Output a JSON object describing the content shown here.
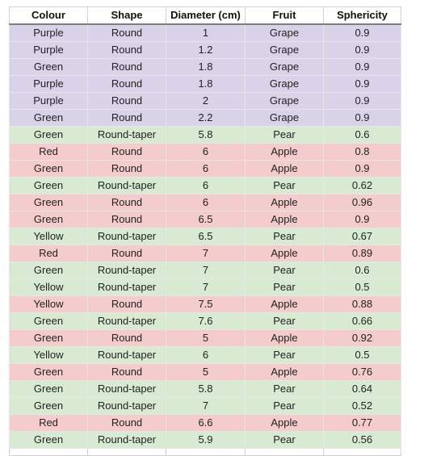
{
  "sheet": {
    "headers": [
      "Colour",
      "Shape",
      "Diameter (cm)",
      "Fruit",
      "Sphericity"
    ],
    "row_colors": {
      "Grape": "#d9d2e9",
      "Pear": "#d9ead3",
      "Apple": "#f4cccc"
    },
    "rows": [
      [
        "Purple",
        "Round",
        "1",
        "Grape",
        "0.9"
      ],
      [
        "Purple",
        "Round",
        "1.2",
        "Grape",
        "0.9"
      ],
      [
        "Green",
        "Round",
        "1.8",
        "Grape",
        "0.9"
      ],
      [
        "Purple",
        "Round",
        "1.8",
        "Grape",
        "0.9"
      ],
      [
        "Purple",
        "Round",
        "2",
        "Grape",
        "0.9"
      ],
      [
        "Green",
        "Round",
        "2.2",
        "Grape",
        "0.9"
      ],
      [
        "Green",
        "Round-taper",
        "5.8",
        "Pear",
        "0.6"
      ],
      [
        "Red",
        "Round",
        "6",
        "Apple",
        "0.8"
      ],
      [
        "Green",
        "Round",
        "6",
        "Apple",
        "0.9"
      ],
      [
        "Green",
        "Round-taper",
        "6",
        "Pear",
        "0.62"
      ],
      [
        "Green",
        "Round",
        "6",
        "Apple",
        "0.96"
      ],
      [
        "Green",
        "Round",
        "6.5",
        "Apple",
        "0.9"
      ],
      [
        "Yellow",
        "Round-taper",
        "6.5",
        "Pear",
        "0.67"
      ],
      [
        "Red",
        "Round",
        "7",
        "Apple",
        "0.89"
      ],
      [
        "Green",
        "Round-taper",
        "7",
        "Pear",
        "0.6"
      ],
      [
        "Yellow",
        "Round-taper",
        "7",
        "Pear",
        "0.5"
      ],
      [
        "Yellow",
        "Round",
        "7.5",
        "Apple",
        "0.88"
      ],
      [
        "Green",
        "Round-taper",
        "7.6",
        "Pear",
        "0.66"
      ],
      [
        "Green",
        "Round",
        "5",
        "Apple",
        "0.92"
      ],
      [
        "Yellow",
        "Round-taper",
        "6",
        "Pear",
        "0.5"
      ],
      [
        "Green",
        "Round",
        "5",
        "Apple",
        "0.76"
      ],
      [
        "Green",
        "Round-taper",
        "5.8",
        "Pear",
        "0.64"
      ],
      [
        "Green",
        "Round-taper",
        "7",
        "Pear",
        "0.52"
      ],
      [
        "Red",
        "Round",
        "6.6",
        "Apple",
        "0.77"
      ],
      [
        "Green",
        "Round-taper",
        "5.9",
        "Pear",
        "0.56"
      ]
    ]
  }
}
